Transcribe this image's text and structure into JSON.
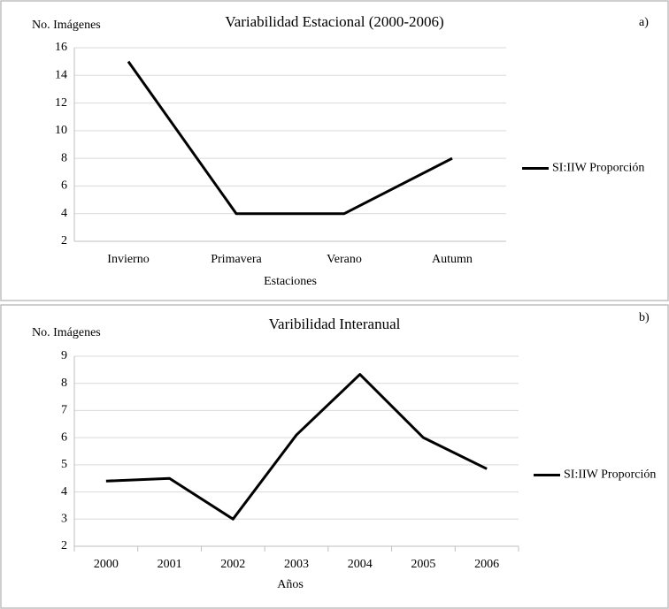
{
  "chart_data": [
    {
      "type": "line",
      "title": "Variabilidad Estacional (2000-2006)",
      "y_label": "No. Imágenes",
      "x_label": "Estaciones",
      "annotation": "a)",
      "categories": [
        "Invierno",
        "Primavera",
        "Verano",
        "Autumn"
      ],
      "series": [
        {
          "name": "SI:IIW Proporción",
          "color": "#000000",
          "values": [
            15,
            4,
            4,
            8
          ]
        }
      ],
      "ylim": [
        2,
        16
      ],
      "yticks": [
        2,
        4,
        6,
        8,
        10,
        12,
        14,
        16
      ],
      "grid": true,
      "legend": "right"
    },
    {
      "type": "line",
      "title": "Varibilidad Interanual",
      "y_label": "No. Imágenes",
      "x_label": "Años",
      "annotation": "b)",
      "categories": [
        "2000",
        "2001",
        "2002",
        "2003",
        "2004",
        "2005",
        "2006"
      ],
      "series": [
        {
          "name": "SI:IIW Proporción",
          "color": "#000000",
          "values": [
            4.4,
            4.5,
            3.0,
            6.1,
            8.33,
            6.0,
            4.85
          ]
        }
      ],
      "ylim": [
        2,
        9
      ],
      "yticks": [
        2,
        3,
        4,
        5,
        6,
        7,
        8,
        9
      ],
      "grid": true,
      "legend": "right"
    }
  ]
}
